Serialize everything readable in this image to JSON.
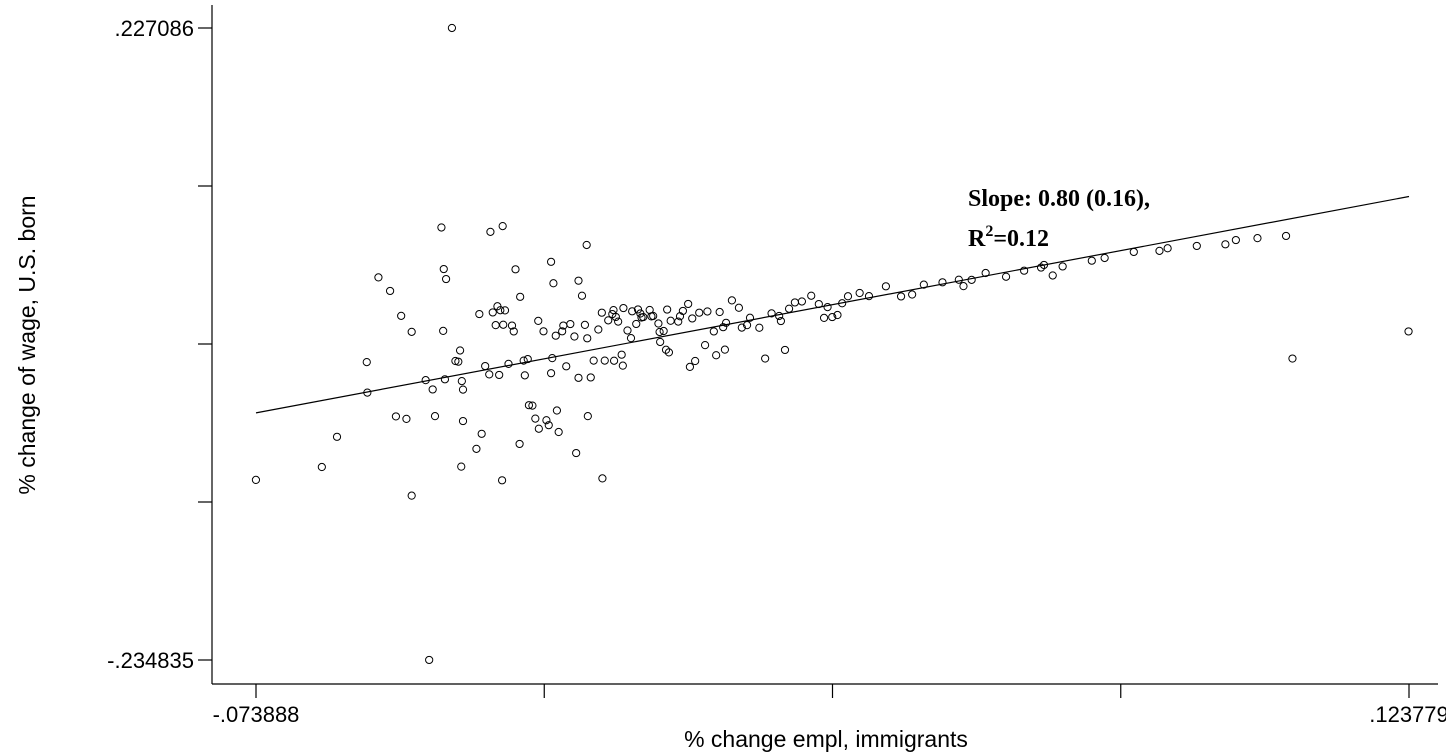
{
  "chart_data": {
    "type": "scatter",
    "xlabel": "% change empl, immigrants",
    "ylabel": "% change of wage, U.S. born",
    "xlim": [
      -0.073888,
      0.123779
    ],
    "ylim": [
      -0.234835,
      0.227086
    ],
    "x_tick_labels": [
      ".073888",
      ".123779"
    ],
    "x_tick_values": [
      -0.073888,
      0.123779
    ],
    "x_tick_display": [
      "-.073888",
      ".123779"
    ],
    "x_minor_ticks": [
      -0.024471,
      0.024946,
      0.074363
    ],
    "y_tick_display": [
      ".227086",
      "-.234835"
    ],
    "y_tick_values": [
      0.227086,
      -0.234835
    ],
    "y_minor_ticks": [
      0.111606,
      -0.003874,
      -0.119355
    ],
    "regression": {
      "slope": 0.8,
      "intercept": 0.0049,
      "annotation_line1": "Slope: 0.80 (0.16),",
      "annotation_r2_prefix": "R",
      "annotation_r2_sup": "2",
      "annotation_r2_suffix": "=0.12"
    },
    "points": [
      [
        -0.0739,
        -0.1032
      ],
      [
        -0.0626,
        -0.0938
      ],
      [
        -0.06,
        -0.0717
      ],
      [
        -0.0549,
        -0.0171
      ],
      [
        -0.0548,
        -0.0394
      ],
      [
        -0.0529,
        0.0448
      ],
      [
        -0.0509,
        0.0349
      ],
      [
        -0.0499,
        -0.0568
      ],
      [
        -0.049,
        0.0167
      ],
      [
        -0.0481,
        -0.0586
      ],
      [
        -0.0472,
        -0.1147
      ],
      [
        -0.0472,
        0.005
      ],
      [
        -0.0448,
        -0.0303
      ],
      [
        -0.0442,
        -0.2348
      ],
      [
        -0.0436,
        -0.0371
      ],
      [
        -0.0432,
        -0.0566
      ],
      [
        -0.0421,
        0.0813
      ],
      [
        -0.0418,
        0.0057
      ],
      [
        -0.0417,
        0.0509
      ],
      [
        -0.0415,
        -0.0297
      ],
      [
        -0.0413,
        0.0436
      ],
      [
        -0.0403,
        0.2271
      ],
      [
        -0.0397,
        -0.0163
      ],
      [
        -0.0392,
        -0.0168
      ],
      [
        -0.0389,
        -0.0086
      ],
      [
        -0.0387,
        -0.0935
      ],
      [
        -0.0386,
        -0.031
      ],
      [
        -0.0384,
        -0.0602
      ],
      [
        -0.0384,
        -0.0372
      ],
      [
        -0.0361,
        -0.0805
      ],
      [
        -0.0356,
        0.018
      ],
      [
        -0.0352,
        -0.0695
      ],
      [
        -0.0346,
        -0.02
      ],
      [
        -0.0339,
        -0.0261
      ],
      [
        -0.0337,
        0.0781
      ],
      [
        -0.0333,
        0.0192
      ],
      [
        -0.0328,
        0.0099
      ],
      [
        -0.0325,
        0.0237
      ],
      [
        -0.0322,
        -0.0265
      ],
      [
        -0.032,
        0.0208
      ],
      [
        -0.0317,
        -0.1035
      ],
      [
        -0.0316,
        0.0823
      ],
      [
        -0.0315,
        0.0102
      ],
      [
        -0.0312,
        0.0207
      ],
      [
        -0.0306,
        -0.0184
      ],
      [
        -0.03,
        0.0096
      ],
      [
        -0.0297,
        0.0053
      ],
      [
        -0.0294,
        0.0507
      ],
      [
        -0.0287,
        -0.0769
      ],
      [
        -0.0286,
        0.0306
      ],
      [
        -0.028,
        -0.016
      ],
      [
        -0.0278,
        -0.0268
      ],
      [
        -0.0273,
        -0.0149
      ],
      [
        -0.0271,
        -0.0486
      ],
      [
        -0.0265,
        -0.0489
      ],
      [
        -0.026,
        -0.0584
      ],
      [
        -0.0255,
        0.013
      ],
      [
        -0.0254,
        -0.0658
      ],
      [
        -0.0246,
        0.0054
      ],
      [
        -0.0241,
        -0.0596
      ],
      [
        -0.0237,
        -0.0632
      ],
      [
        -0.0233,
        -0.0252
      ],
      [
        -0.0233,
        0.0562
      ],
      [
        -0.0231,
        -0.0142
      ],
      [
        -0.0229,
        0.0405
      ],
      [
        -0.0225,
        0.0022
      ],
      [
        -0.0223,
        -0.0525
      ],
      [
        -0.022,
        -0.0682
      ],
      [
        -0.0214,
        0.0054
      ],
      [
        -0.0212,
        0.0096
      ],
      [
        -0.0207,
        -0.0202
      ],
      [
        -0.02,
        0.0107
      ],
      [
        -0.0193,
        0.0016
      ],
      [
        -0.019,
        -0.0836
      ],
      [
        -0.0186,
        0.0424
      ],
      [
        -0.0186,
        -0.0286
      ],
      [
        -0.018,
        0.0314
      ],
      [
        -0.0175,
        0.0101
      ],
      [
        -0.0172,
        0.0685
      ],
      [
        -0.0171,
        0.0003
      ],
      [
        -0.017,
        -0.0566
      ],
      [
        -0.0165,
        -0.0283
      ],
      [
        -0.016,
        -0.016
      ],
      [
        -0.0152,
        0.0067
      ],
      [
        -0.0146,
        0.019
      ],
      [
        -0.0145,
        -0.1021
      ],
      [
        -0.0141,
        -0.016
      ],
      [
        -0.0135,
        0.0134
      ],
      [
        -0.0128,
        0.018
      ],
      [
        -0.0126,
        0.0209
      ],
      [
        -0.0125,
        -0.0161
      ],
      [
        -0.0122,
        0.0159
      ],
      [
        -0.0118,
        0.0125
      ],
      [
        -0.0112,
        -0.0117
      ],
      [
        -0.011,
        -0.0197
      ],
      [
        -0.0109,
        0.0224
      ],
      [
        -0.0102,
        0.006
      ],
      [
        -0.0096,
        0.0004
      ],
      [
        -0.0094,
        0.02
      ],
      [
        -0.0087,
        0.0108
      ],
      [
        -0.0084,
        0.0214
      ],
      [
        -0.008,
        0.0184
      ],
      [
        -0.0078,
        0.0155
      ],
      [
        -0.0075,
        0.0158
      ],
      [
        -0.0064,
        0.021
      ],
      [
        -0.0061,
        0.0163
      ],
      [
        -0.0058,
        0.0166
      ],
      [
        -0.0049,
        0.0111
      ],
      [
        -0.0047,
        0.0049
      ],
      [
        -0.0046,
        -0.0024
      ],
      [
        -0.004,
        0.0056
      ],
      [
        -0.0036,
        -0.0081
      ],
      [
        -0.0034,
        0.0213
      ],
      [
        -0.0031,
        -0.01
      ],
      [
        -0.0028,
        0.0131
      ],
      [
        -0.0015,
        0.0125
      ],
      [
        -0.0012,
        0.0164
      ],
      [
        -0.0007,
        0.0203
      ],
      [
        0.0002,
        0.0254
      ],
      [
        0.0005,
        -0.0206
      ],
      [
        0.0009,
        0.0148
      ],
      [
        0.0014,
        -0.0163
      ],
      [
        0.0021,
        0.019
      ],
      [
        0.0031,
        -0.0047
      ],
      [
        0.0035,
        0.0199
      ],
      [
        0.0046,
        0.0053
      ],
      [
        0.005,
        -0.0121
      ],
      [
        0.0056,
        0.0195
      ],
      [
        0.0062,
        0.0084
      ],
      [
        0.0065,
        -0.008
      ],
      [
        0.0067,
        0.0116
      ],
      [
        0.0077,
        0.028
      ],
      [
        0.0089,
        0.0226
      ],
      [
        0.0094,
        0.0081
      ],
      [
        0.0103,
        0.0099
      ],
      [
        0.0108,
        0.0153
      ],
      [
        0.0124,
        0.008
      ],
      [
        0.0134,
        -0.0145
      ],
      [
        0.0145,
        0.0185
      ],
      [
        0.0158,
        0.0166
      ],
      [
        0.0161,
        0.0129
      ],
      [
        0.0168,
        -0.0082
      ],
      [
        0.0175,
        0.0219
      ],
      [
        0.0185,
        0.0265
      ],
      [
        0.0197,
        0.0272
      ],
      [
        0.0213,
        0.0314
      ],
      [
        0.0226,
        0.0253
      ],
      [
        0.0235,
        0.0152
      ],
      [
        0.0241,
        0.0231
      ],
      [
        0.0249,
        0.0158
      ],
      [
        0.0258,
        0.0173
      ],
      [
        0.0266,
        0.0259
      ],
      [
        0.0276,
        0.031
      ],
      [
        0.0296,
        0.0334
      ],
      [
        0.0312,
        0.0311
      ],
      [
        0.0341,
        0.0383
      ],
      [
        0.0367,
        0.0309
      ],
      [
        0.0386,
        0.0323
      ],
      [
        0.0406,
        0.0395
      ],
      [
        0.0438,
        0.0412
      ],
      [
        0.0466,
        0.0431
      ],
      [
        0.0474,
        0.0384
      ],
      [
        0.0488,
        0.043
      ],
      [
        0.0512,
        0.048
      ],
      [
        0.0547,
        0.0453
      ],
      [
        0.0578,
        0.0497
      ],
      [
        0.0607,
        0.052
      ],
      [
        0.0612,
        0.0539
      ],
      [
        0.0627,
        0.0462
      ],
      [
        0.0644,
        0.0528
      ],
      [
        0.0694,
        0.057
      ],
      [
        0.0716,
        0.059
      ],
      [
        0.0766,
        0.0634
      ],
      [
        0.081,
        0.0642
      ],
      [
        0.0824,
        0.0661
      ],
      [
        0.0874,
        0.0678
      ],
      [
        0.0923,
        0.069
      ],
      [
        0.0941,
        0.0721
      ],
      [
        0.0978,
        0.0735
      ],
      [
        0.1027,
        0.0751
      ],
      [
        0.1038,
        -0.0145
      ],
      [
        0.1237,
        0.0053
      ]
    ]
  }
}
